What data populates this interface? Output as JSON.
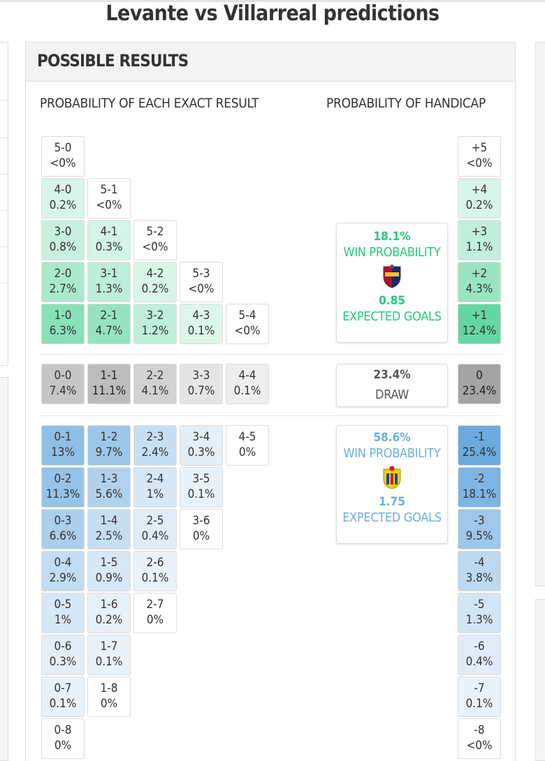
{
  "page": {
    "title": "Levante vs Villarreal predictions"
  },
  "panel": {
    "title": "POSSIBLE RESULTS",
    "exact_title": "PROBABILITY OF EACH EXACT RESULT",
    "handicap_title": "PROBABILITY OF HANDICAP"
  },
  "colors": {
    "home_win": "#27c87c",
    "draw": "#999999",
    "away_win": "#4a97d6"
  },
  "home_wins": [
    [
      {
        "s": "5-0",
        "p": "<0%",
        "v": 0
      }
    ],
    [
      {
        "s": "4-0",
        "p": "0.2%",
        "v": 0.2
      },
      {
        "s": "5-1",
        "p": "<0%",
        "v": 0
      }
    ],
    [
      {
        "s": "3-0",
        "p": "0.8%",
        "v": 0.8
      },
      {
        "s": "4-1",
        "p": "0.3%",
        "v": 0.3
      },
      {
        "s": "5-2",
        "p": "<0%",
        "v": 0
      }
    ],
    [
      {
        "s": "2-0",
        "p": "2.7%",
        "v": 2.7
      },
      {
        "s": "3-1",
        "p": "1.3%",
        "v": 1.3
      },
      {
        "s": "4-2",
        "p": "0.2%",
        "v": 0.2
      },
      {
        "s": "5-3",
        "p": "<0%",
        "v": 0
      }
    ],
    [
      {
        "s": "1-0",
        "p": "6.3%",
        "v": 6.3
      },
      {
        "s": "2-1",
        "p": "4.7%",
        "v": 4.7
      },
      {
        "s": "3-2",
        "p": "1.2%",
        "v": 1.2
      },
      {
        "s": "4-3",
        "p": "0.1%",
        "v": 0.1
      },
      {
        "s": "5-4",
        "p": "<0%",
        "v": 0
      }
    ]
  ],
  "draws": [
    {
      "s": "0-0",
      "p": "7.4%",
      "v": 7.4
    },
    {
      "s": "1-1",
      "p": "11.1%",
      "v": 11.1
    },
    {
      "s": "2-2",
      "p": "4.1%",
      "v": 4.1
    },
    {
      "s": "3-3",
      "p": "0.7%",
      "v": 0.7
    },
    {
      "s": "4-4",
      "p": "0.1%",
      "v": 0.1
    }
  ],
  "away_wins": [
    [
      {
        "s": "0-1",
        "p": "13%",
        "v": 13
      },
      {
        "s": "1-2",
        "p": "9.7%",
        "v": 9.7
      },
      {
        "s": "2-3",
        "p": "2.4%",
        "v": 2.4
      },
      {
        "s": "3-4",
        "p": "0.3%",
        "v": 0.3
      },
      {
        "s": "4-5",
        "p": "0%",
        "v": 0
      }
    ],
    [
      {
        "s": "0-2",
        "p": "11.3%",
        "v": 11.3
      },
      {
        "s": "1-3",
        "p": "5.6%",
        "v": 5.6
      },
      {
        "s": "2-4",
        "p": "1%",
        "v": 1
      },
      {
        "s": "3-5",
        "p": "0.1%",
        "v": 0.1
      }
    ],
    [
      {
        "s": "0-3",
        "p": "6.6%",
        "v": 6.6
      },
      {
        "s": "1-4",
        "p": "2.5%",
        "v": 2.5
      },
      {
        "s": "2-5",
        "p": "0.4%",
        "v": 0.4
      },
      {
        "s": "3-6",
        "p": "0%",
        "v": 0
      }
    ],
    [
      {
        "s": "0-4",
        "p": "2.9%",
        "v": 2.9
      },
      {
        "s": "1-5",
        "p": "0.9%",
        "v": 0.9
      },
      {
        "s": "2-6",
        "p": "0.1%",
        "v": 0.1
      }
    ],
    [
      {
        "s": "0-5",
        "p": "1%",
        "v": 1
      },
      {
        "s": "1-6",
        "p": "0.2%",
        "v": 0.2
      },
      {
        "s": "2-7",
        "p": "0%",
        "v": 0
      }
    ],
    [
      {
        "s": "0-6",
        "p": "0.3%",
        "v": 0.3
      },
      {
        "s": "1-7",
        "p": "0.1%",
        "v": 0.1
      }
    ],
    [
      {
        "s": "0-7",
        "p": "0.1%",
        "v": 0.1
      },
      {
        "s": "1-8",
        "p": "0%",
        "v": 0
      }
    ],
    [
      {
        "s": "0-8",
        "p": "0%",
        "v": 0
      }
    ]
  ],
  "handicap": [
    {
      "s": "+5",
      "p": "<0%",
      "v": 0,
      "kind": "home"
    },
    {
      "s": "+4",
      "p": "0.2%",
      "v": 0.2,
      "kind": "home"
    },
    {
      "s": "+3",
      "p": "1.1%",
      "v": 1.1,
      "kind": "home"
    },
    {
      "s": "+2",
      "p": "4.3%",
      "v": 4.3,
      "kind": "home"
    },
    {
      "s": "+1",
      "p": "12.4%",
      "v": 12.4,
      "kind": "home"
    },
    {
      "s": "0",
      "p": "23.4%",
      "v": 23.4,
      "kind": "draw"
    },
    {
      "s": "-1",
      "p": "25.4%",
      "v": 25.4,
      "kind": "away"
    },
    {
      "s": "-2",
      "p": "18.1%",
      "v": 18.1,
      "kind": "away"
    },
    {
      "s": "-3",
      "p": "9.5%",
      "v": 9.5,
      "kind": "away"
    },
    {
      "s": "-4",
      "p": "3.8%",
      "v": 3.8,
      "kind": "away"
    },
    {
      "s": "-5",
      "p": "1.3%",
      "v": 1.3,
      "kind": "away"
    },
    {
      "s": "-6",
      "p": "0.4%",
      "v": 0.4,
      "kind": "away"
    },
    {
      "s": "-7",
      "p": "0.1%",
      "v": 0.1,
      "kind": "away"
    },
    {
      "s": "-8",
      "p": "<0%",
      "v": 0,
      "kind": "away"
    }
  ],
  "home": {
    "win_pct": "18.1%",
    "win_label": "WIN PROBABILITY",
    "xg": "0.85",
    "xg_label": "EXPECTED GOALS",
    "crest_icon": "levante-crest-icon"
  },
  "draw": {
    "pct": "23.4%",
    "label": "DRAW"
  },
  "away": {
    "win_pct": "58.6%",
    "win_label": "WIN PROBABILITY",
    "xg": "1.75",
    "xg_label": "EXPECTED GOALS",
    "crest_icon": "villarreal-crest-icon"
  }
}
